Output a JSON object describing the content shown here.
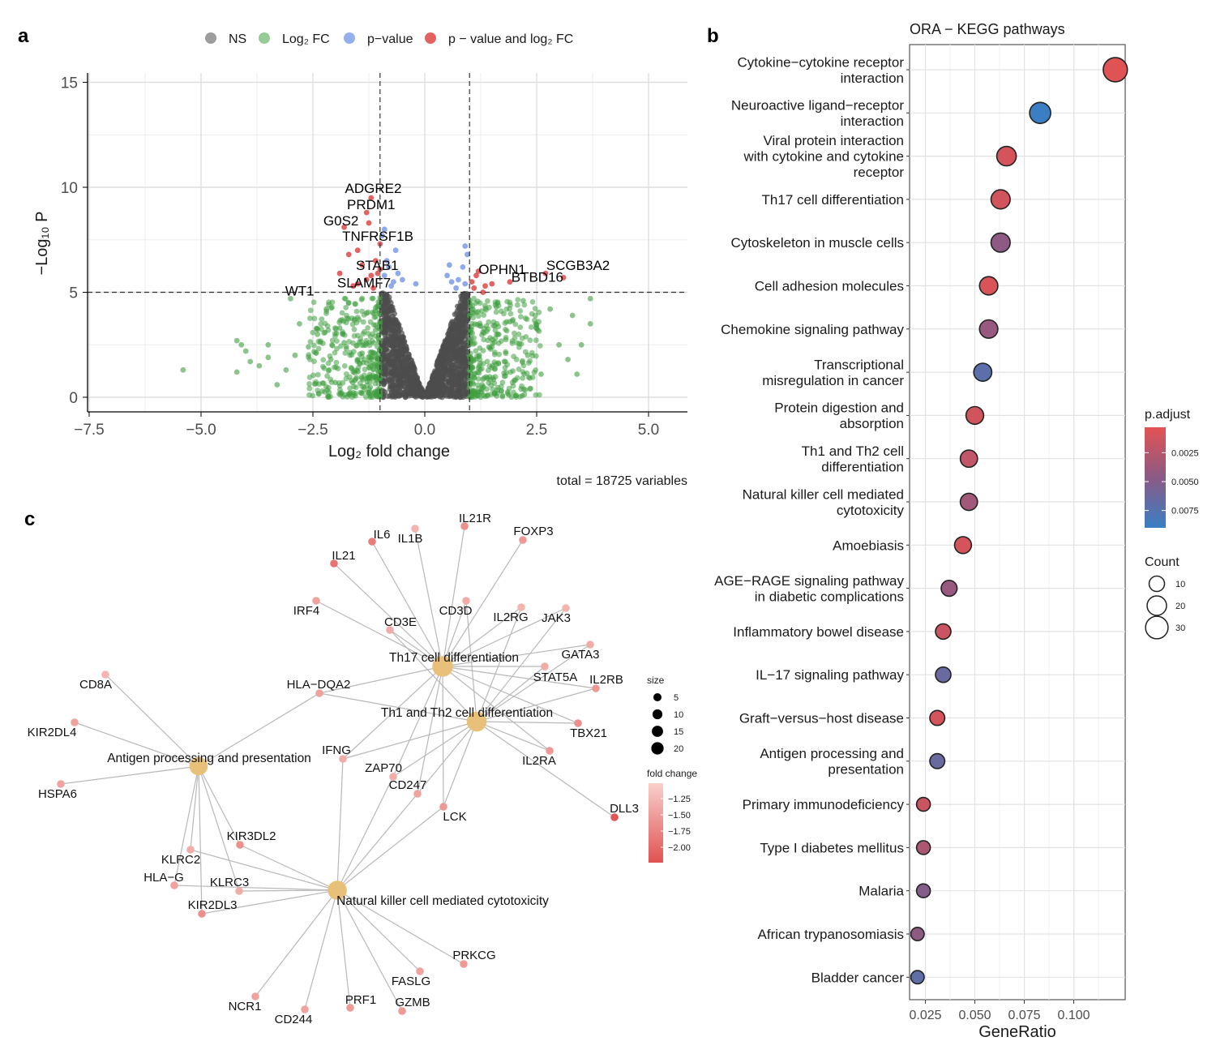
{
  "panels": {
    "a": "a",
    "b": "b",
    "c": "c"
  },
  "colors": {
    "ns": "#4d4d4d",
    "log2fc": "#3f9e3f",
    "pvalue": "#7b9ae8",
    "both": "#e05252",
    "padj_low": "#e35353",
    "padj_mid": "#8a5a85",
    "padj_high": "#3a7fc4",
    "hub_node": "#e8c07a",
    "gene_light": "#f2b1ab",
    "gene_dark": "#e05252"
  },
  "volcano": {
    "legend": [
      "NS",
      "Log₂ FC",
      "p−value",
      "p − value and log₂ FC"
    ],
    "xlabel": "Log₂ fold change",
    "ylabel": "−Log₁₀ P",
    "caption": "total = 18725 variables",
    "x_ticks": [
      "−7.5",
      "−5.0",
      "−2.5",
      "0.0",
      "2.5",
      "5.0"
    ],
    "y_ticks": [
      "0",
      "5",
      "10",
      "15"
    ]
  },
  "chart_data": [
    {
      "type": "scatter",
      "title": "",
      "xlabel": "Log₂ fold change",
      "ylabel": "−Log₁₀ P",
      "xlim": [
        -7.5,
        5.8
      ],
      "ylim": [
        0,
        15
      ],
      "fc_cutoff": 1.0,
      "p_cutoff": 5.0,
      "grid": true,
      "legend_position": "top",
      "series": [
        {
          "name": "NS",
          "description": "dense volcano cloud within |log2FC| < 1 and −log10 P < 5"
        },
        {
          "name": "Log₂ FC",
          "points": [
            [
              -5.4,
              1.3
            ],
            [
              -4.1,
              2.5
            ],
            [
              -4.0,
              2.2
            ],
            [
              -3.9,
              1.7
            ],
            [
              -3.7,
              1.5
            ],
            [
              -3.5,
              2.5
            ],
            [
              -3.5,
              1.9
            ],
            [
              -3.3,
              0.6
            ],
            [
              -3.1,
              1.3
            ],
            [
              -3.0,
              4.7
            ],
            [
              -2.9,
              2.0
            ],
            [
              -2.8,
              3.5
            ],
            [
              -2.6,
              2.4
            ],
            [
              -2.4,
              3.0
            ],
            [
              -2.2,
              4.2
            ],
            [
              -2.1,
              1.8
            ],
            [
              -2.0,
              0.7
            ],
            [
              -1.9,
              3.3
            ],
            [
              -1.8,
              2.6
            ],
            [
              -1.7,
              4.5
            ],
            [
              -1.6,
              1.2
            ],
            [
              -1.5,
              3.8
            ],
            [
              -1.4,
              2.1
            ],
            [
              -1.3,
              4.0
            ],
            [
              -1.2,
              1.5
            ],
            [
              -1.1,
              3.2
            ],
            [
              -4.2,
              2.7
            ],
            [
              -4.2,
              1.2
            ],
            [
              3.7,
              4.7
            ],
            [
              3.7,
              3.5
            ],
            [
              3.5,
              2.5
            ],
            [
              3.3,
              3.9
            ],
            [
              3.2,
              1.8
            ],
            [
              3.0,
              2.5
            ],
            [
              2.8,
              4.2
            ],
            [
              2.6,
              1.1
            ],
            [
              2.5,
              3.3
            ],
            [
              2.3,
              2.0
            ],
            [
              2.2,
              4.6
            ],
            [
              2.0,
              0.8
            ],
            [
              1.9,
              3.6
            ],
            [
              1.8,
              1.7
            ],
            [
              1.6,
              4.3
            ],
            [
              1.5,
              2.4
            ],
            [
              1.4,
              0.9
            ],
            [
              1.3,
              3.1
            ],
            [
              1.2,
              1.4
            ],
            [
              1.1,
              4.0
            ],
            [
              3.4,
              1.1
            ]
          ]
        },
        {
          "name": "p−value",
          "points": [
            [
              -0.9,
              8.0
            ],
            [
              -0.95,
              7.7
            ],
            [
              -0.85,
              6.5
            ],
            [
              -0.8,
              6.2
            ],
            [
              -0.9,
              5.8
            ],
            [
              -0.7,
              5.5
            ],
            [
              -0.75,
              5.3
            ],
            [
              -0.6,
              5.9
            ],
            [
              -0.5,
              5.6
            ],
            [
              -0.65,
              7.0
            ],
            [
              -0.2,
              5.4
            ],
            [
              0.5,
              5.8
            ],
            [
              0.55,
              6.3
            ],
            [
              0.6,
              5.5
            ],
            [
              0.7,
              5.2
            ],
            [
              0.75,
              5.6
            ],
            [
              0.85,
              6.2
            ],
            [
              0.9,
              5.4
            ],
            [
              0.95,
              6.8
            ],
            [
              0.9,
              7.2
            ]
          ]
        },
        {
          "name": "p − value and log₂ FC",
          "points": [
            [
              -1.2,
              9.5
            ],
            [
              -1.3,
              8.8
            ],
            [
              -1.25,
              8.3
            ],
            [
              -1.8,
              8.1
            ],
            [
              -1.5,
              7.0
            ],
            [
              -1.7,
              6.8
            ],
            [
              -1.4,
              6.3
            ],
            [
              -1.1,
              6.5
            ],
            [
              -1.05,
              5.9
            ],
            [
              -1.3,
              5.6
            ],
            [
              -1.5,
              5.4
            ],
            [
              -1.15,
              5.2
            ],
            [
              -1.2,
              5.8
            ],
            [
              -1.9,
              5.9
            ],
            [
              -1.6,
              5.3
            ],
            [
              -1.0,
              6.1
            ],
            [
              -1.0,
              7.3
            ],
            [
              1.05,
              5.5
            ],
            [
              1.15,
              5.8
            ],
            [
              1.2,
              6.0
            ],
            [
              1.35,
              5.3
            ],
            [
              1.5,
              5.4
            ],
            [
              1.9,
              5.5
            ],
            [
              2.7,
              5.9
            ],
            [
              3.1,
              5.7
            ],
            [
              1.1,
              5.2
            ],
            [
              1.3,
              5.0
            ]
          ]
        }
      ],
      "labels": [
        {
          "text": "ADGRE2",
          "x": -1.15,
          "y": 9.5
        },
        {
          "text": "PRDM1",
          "x": -1.2,
          "y": 8.8
        },
        {
          "text": "G0S2",
          "x": -1.8,
          "y": 8.1
        },
        {
          "text": "TNFRSF1B",
          "x": -1.05,
          "y": 7.3
        },
        {
          "text": "STAB1",
          "x": -1.1,
          "y": 5.9
        },
        {
          "text": "SLAMF7",
          "x": -1.25,
          "y": 5.3
        },
        {
          "text": "WT1",
          "x": -3.05,
          "y": 4.7
        },
        {
          "text": "OPHN1",
          "x": 1.15,
          "y": 5.8
        },
        {
          "text": "SCGB3A2",
          "x": 2.7,
          "y": 5.9
        },
        {
          "text": "BTBD16",
          "x": 1.9,
          "y": 5.5
        }
      ]
    },
    {
      "type": "scatter",
      "title": "ORA − KEGG pathways",
      "xlabel": "GeneRatio",
      "ylabel": "",
      "xlim": [
        0.017,
        0.126
      ],
      "x_ticks": [
        "0.025",
        "0.050",
        "0.075",
        "0.100"
      ],
      "grid": true,
      "legend_position": "right",
      "color_legend": {
        "title": "p.adjust",
        "ticks": [
          "0.0025",
          "0.0050",
          "0.0075"
        ],
        "range": [
          0.0003,
          0.009
        ]
      },
      "size_legend": {
        "title": "Count",
        "ticks": [
          "10",
          "20",
          "30"
        ]
      },
      "categories": [
        "Cytokine−cytokine receptor\ninteraction",
        "Neuroactive ligand−receptor\ninteraction",
        "Viral protein interaction\nwith cytokine and cytokine\nreceptor",
        "Th17 cell differentiation",
        "Cytoskeleton in muscle cells",
        "Cell adhesion molecules",
        "Chemokine signaling pathway",
        "Transcriptional\nmisregulation in cancer",
        "Protein digestion and\nabsorption",
        "Th1 and Th2 cell\ndifferentiation",
        "Natural killer cell mediated\ncytotoxicity",
        "Amoebiasis",
        "AGE−RAGE signaling pathway\nin diabetic complications",
        "Inflammatory bowel disease",
        "IL−17 signaling pathway",
        "Graft−versus−host disease",
        "Antigen processing and\npresentation",
        "Primary immunodeficiency",
        "Type I diabetes mellitus",
        "Malaria",
        "African trypanosomiasis",
        "Bladder cancer"
      ],
      "gene_ratio": [
        0.121,
        0.083,
        0.066,
        0.063,
        0.063,
        0.057,
        0.057,
        0.054,
        0.05,
        0.047,
        0.047,
        0.044,
        0.037,
        0.034,
        0.034,
        0.031,
        0.031,
        0.024,
        0.024,
        0.024,
        0.021,
        0.021
      ],
      "count": [
        36,
        25,
        20,
        19,
        19,
        17,
        17,
        16,
        15,
        14,
        14,
        13,
        11,
        10,
        10,
        9,
        9,
        7,
        7,
        7,
        6,
        6
      ],
      "p_adjust": [
        0.0005,
        0.0089,
        0.001,
        0.0012,
        0.0045,
        0.0008,
        0.004,
        0.0072,
        0.0012,
        0.002,
        0.0035,
        0.001,
        0.004,
        0.0015,
        0.0065,
        0.001,
        0.0065,
        0.0015,
        0.003,
        0.005,
        0.0045,
        0.007
      ]
    },
    {
      "type": "network",
      "title": "",
      "hubs": [
        {
          "name": "Th17 cell differentiation",
          "size": 20
        },
        {
          "name": "Th1 and Th2 cell differentiation",
          "size": 18
        },
        {
          "name": "Antigen processing and presentation",
          "size": 14
        },
        {
          "name": "Natural killer cell mediated cytotoxicity",
          "size": 16
        }
      ],
      "genes": [
        {
          "name": "IL6",
          "fc": -1.8,
          "links": [
            0
          ]
        },
        {
          "name": "IL1B",
          "fc": -1.2,
          "links": [
            0
          ]
        },
        {
          "name": "IL21R",
          "fc": -1.6,
          "links": [
            0
          ]
        },
        {
          "name": "FOXP3",
          "fc": -1.5,
          "links": [
            0
          ]
        },
        {
          "name": "IL21",
          "fc": -1.9,
          "links": [
            0
          ]
        },
        {
          "name": "IRF4",
          "fc": -1.4,
          "links": [
            0
          ]
        },
        {
          "name": "CD3E",
          "fc": -1.3,
          "links": [
            0,
            1
          ]
        },
        {
          "name": "CD3D",
          "fc": -1.3,
          "links": [
            0,
            1
          ]
        },
        {
          "name": "IL2RG",
          "fc": -1.2,
          "links": [
            0,
            1
          ]
        },
        {
          "name": "JAK3",
          "fc": -1.2,
          "links": [
            0,
            1
          ]
        },
        {
          "name": "GATA3",
          "fc": -1.3,
          "links": [
            0,
            1
          ]
        },
        {
          "name": "STAT5A",
          "fc": -1.3,
          "links": [
            0,
            1
          ]
        },
        {
          "name": "IL2RB",
          "fc": -1.5,
          "links": [
            0,
            1
          ]
        },
        {
          "name": "TBX21",
          "fc": -1.6,
          "links": [
            0,
            1
          ]
        },
        {
          "name": "IL2RA",
          "fc": -1.5,
          "links": [
            0,
            1
          ]
        },
        {
          "name": "HLA−DQA2",
          "fc": -1.4,
          "links": [
            0,
            1,
            2
          ]
        },
        {
          "name": "IFNG",
          "fc": -1.3,
          "links": [
            0,
            1,
            3
          ]
        },
        {
          "name": "ZAP70",
          "fc": -1.3,
          "links": [
            0,
            1,
            3
          ]
        },
        {
          "name": "CD247",
          "fc": -1.4,
          "links": [
            0,
            1,
            3
          ]
        },
        {
          "name": "LCK",
          "fc": -1.5,
          "links": [
            0,
            1,
            3
          ]
        },
        {
          "name": "DLL3",
          "fc": -2.2,
          "links": [
            1
          ]
        },
        {
          "name": "CD8A",
          "fc": -1.2,
          "links": [
            2
          ]
        },
        {
          "name": "KIR2DL4",
          "fc": -1.4,
          "links": [
            2
          ]
        },
        {
          "name": "HSPA6",
          "fc": -1.4,
          "links": [
            2
          ]
        },
        {
          "name": "KIR3DL2",
          "fc": -1.6,
          "links": [
            2,
            3
          ]
        },
        {
          "name": "KLRC2",
          "fc": -1.3,
          "links": [
            2,
            3
          ]
        },
        {
          "name": "HLA−G",
          "fc": -1.4,
          "links": [
            2,
            3
          ]
        },
        {
          "name": "KLRC3",
          "fc": -1.3,
          "links": [
            2,
            3
          ]
        },
        {
          "name": "KIR2DL3",
          "fc": -1.6,
          "links": [
            2,
            3
          ]
        },
        {
          "name": "NCR1",
          "fc": -1.4,
          "links": [
            3
          ]
        },
        {
          "name": "CD244",
          "fc": -1.4,
          "links": [
            3
          ]
        },
        {
          "name": "PRF1",
          "fc": -1.5,
          "links": [
            3
          ]
        },
        {
          "name": "GZMB",
          "fc": -1.5,
          "links": [
            3
          ]
        },
        {
          "name": "FASLG",
          "fc": -1.4,
          "links": [
            3
          ]
        },
        {
          "name": "PRKCG",
          "fc": -1.5,
          "links": [
            3
          ]
        }
      ],
      "size_legend": {
        "title": "size",
        "ticks": [
          "5",
          "10",
          "15",
          "20"
        ]
      },
      "color_legend": {
        "title": "fold change",
        "ticks": [
          "−1.25",
          "−1.50",
          "−1.75",
          "−2.00"
        ],
        "range": [
          -2.25,
          -1.0
        ]
      }
    }
  ]
}
